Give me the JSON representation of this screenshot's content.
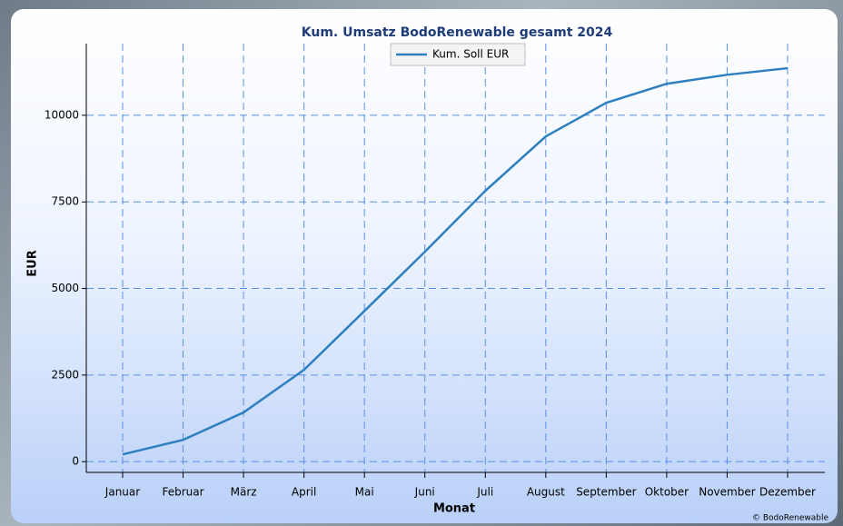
{
  "chart_data": {
    "type": "line",
    "title": "Kum. Umsatz BodoRenewable gesamt 2024",
    "x_label": "Monat",
    "y_label": "EUR",
    "categories": [
      "Januar",
      "Februar",
      "März",
      "April",
      "Mai",
      "Juni",
      "Juli",
      "August",
      "September",
      "Oktober",
      "November",
      "Dezember"
    ],
    "series": [
      {
        "name": "Kum. Soll EUR",
        "color": "#2e7fbf",
        "values": [
          210,
          630,
          1420,
          2650,
          4350,
          6060,
          7820,
          9390,
          10360,
          10910,
          11170,
          11360
        ]
      }
    ],
    "ylim": [
      -310,
      12070
    ],
    "yticks": [
      0,
      2500,
      5000,
      7500,
      10000
    ],
    "grid": true,
    "legend": "top",
    "footer": "© BodoRenewable"
  }
}
